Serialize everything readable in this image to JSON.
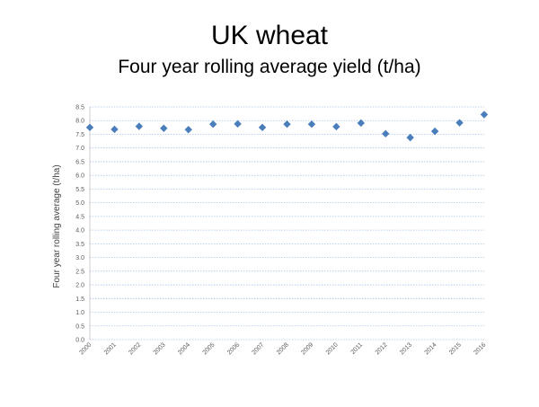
{
  "title": "UK wheat",
  "subtitle": "Four year rolling average yield (t/ha)",
  "chart_data": {
    "type": "scatter",
    "ylabel": "Four year rolling average (t/ha)",
    "xlabel": "",
    "x": [
      "2000",
      "2001",
      "2002",
      "2003",
      "2004",
      "2005",
      "2006",
      "2007",
      "2008",
      "2009",
      "2010",
      "2011",
      "2012",
      "2013",
      "2014",
      "2015",
      "2016"
    ],
    "y": [
      7.75,
      7.68,
      7.79,
      7.72,
      7.67,
      7.87,
      7.88,
      7.75,
      7.87,
      7.87,
      7.78,
      7.91,
      7.52,
      7.38,
      7.61,
      7.92,
      8.22
    ],
    "ylim": [
      0,
      8.5
    ],
    "yticks": [
      "0.0",
      "0.5",
      "1.0",
      "1.5",
      "2.0",
      "2.5",
      "3.0",
      "3.5",
      "4.0",
      "4.5",
      "5.0",
      "5.5",
      "6.0",
      "6.5",
      "7.0",
      "7.5",
      "8.0",
      "8.5"
    ],
    "grid": true,
    "marker_color": "#4a7ebb",
    "grid_color": "#a6c4e6"
  }
}
